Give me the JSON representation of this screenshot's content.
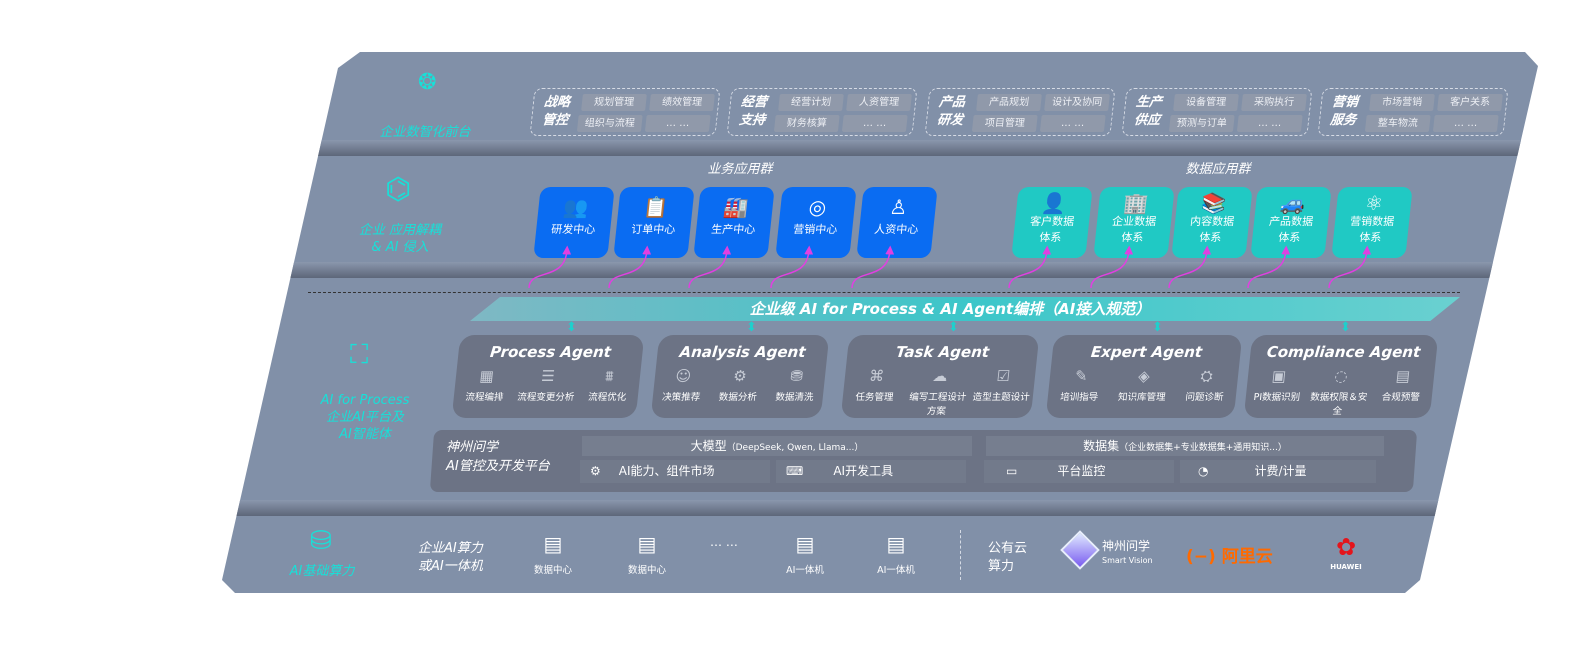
{
  "layer1": {
    "label": "企业数智化前台",
    "icon": "brain-icon",
    "groups": [
      {
        "title": [
          "战略",
          "管控"
        ],
        "chips": [
          "规划管理",
          "绩效管理",
          "组织与流程",
          "… …"
        ]
      },
      {
        "title": [
          "经营",
          "支持"
        ],
        "chips": [
          "经营计划",
          "人资管理",
          "财务核算",
          "… …"
        ]
      },
      {
        "title": [
          "产品",
          "研发"
        ],
        "chips": [
          "产品规划",
          "设计及协同",
          "项目管理",
          "… …"
        ]
      },
      {
        "title": [
          "生产",
          "供应"
        ],
        "chips": [
          "设备管理",
          "采购执行",
          "预测与订单",
          "… …"
        ]
      },
      {
        "title": [
          "营销",
          "服务"
        ],
        "chips": [
          "市场营销",
          "客户关系",
          "整车物流",
          "… …"
        ]
      }
    ]
  },
  "layer2": {
    "label": [
      "企业 应用解耦",
      "& AI 侵入"
    ],
    "icon": "molecule-icon",
    "business_title": "业务应用群",
    "data_title": "数据应用群",
    "business": [
      {
        "label": "研发中心",
        "icon": "people-icon"
      },
      {
        "label": "订单中心",
        "icon": "clipboard-icon"
      },
      {
        "label": "生产中心",
        "icon": "factory-icon"
      },
      {
        "label": "营销中心",
        "icon": "target-icon"
      },
      {
        "label": "人资中心",
        "icon": "person-icon"
      }
    ],
    "data": [
      {
        "label": [
          "客户数据",
          "体系"
        ],
        "icon": "user-icon"
      },
      {
        "label": [
          "企业数据",
          "体系"
        ],
        "icon": "building-icon"
      },
      {
        "label": [
          "内容数据",
          "体系"
        ],
        "icon": "books-icon"
      },
      {
        "label": [
          "产品数据",
          "体系"
        ],
        "icon": "car-icon"
      },
      {
        "label": [
          "营销数据",
          "体系"
        ],
        "icon": "atom-icon"
      }
    ]
  },
  "banner": "企业级 AI for Process & AI Agent编排（AI接入规范）",
  "layer3": {
    "label": [
      "AI for Process",
      "企业AI平台及",
      "AI智能体"
    ],
    "icon": "face-scan-icon",
    "agents": [
      {
        "title": "Process Agent",
        "items": [
          "流程编排",
          "流程变更分析",
          "流程优化"
        ]
      },
      {
        "title": "Analysis Agent",
        "items": [
          "决策推荐",
          "数据分析",
          "数据清洗"
        ]
      },
      {
        "title": "Task Agent",
        "items": [
          "任务管理",
          "编写工程设计方案",
          "造型主题设计"
        ]
      },
      {
        "title": "Expert Agent",
        "items": [
          "培训指导",
          "知识库管理",
          "问题诊断"
        ]
      },
      {
        "title": "Compliance Agent",
        "items": [
          "PI数据识别",
          "数据权限＆安全",
          "合规预警"
        ]
      }
    ],
    "platform": {
      "title": [
        "神州问学",
        "AI管控及开发平台"
      ],
      "model": "大模型",
      "model_note": "（DeepSeek, Qwen, Llama...）",
      "dataset": "数据集",
      "dataset_note": "（企业数据集+专业数据集+通用知识...）",
      "cells": [
        "AI能力、组件市场",
        "AI开发工具",
        "平台监控",
        "计费/计量"
      ]
    }
  },
  "layer4": {
    "label": "AI基础算力",
    "icon": "database-icon",
    "enterprise": [
      "企业AI算力",
      "或AI一体机"
    ],
    "servers": [
      "数据中心",
      "数据中心",
      "AI一体机",
      "AI一体机"
    ],
    "ellipsis": "… …",
    "public": [
      "公有云",
      "算力"
    ],
    "vendors": {
      "smartvision": {
        "name": "神州问学",
        "sub": "Smart Vision"
      },
      "aliyun": "阿里云",
      "huawei": "HUAWEI"
    }
  },
  "colors": {
    "panel": "#8190a8",
    "cyan": "#18e0d8",
    "blue": "#0a6cf2",
    "teal": "#20c9c4",
    "magenta": "#e040e0",
    "aliyun": "#ff6a00",
    "huawei": "#e4141b"
  }
}
